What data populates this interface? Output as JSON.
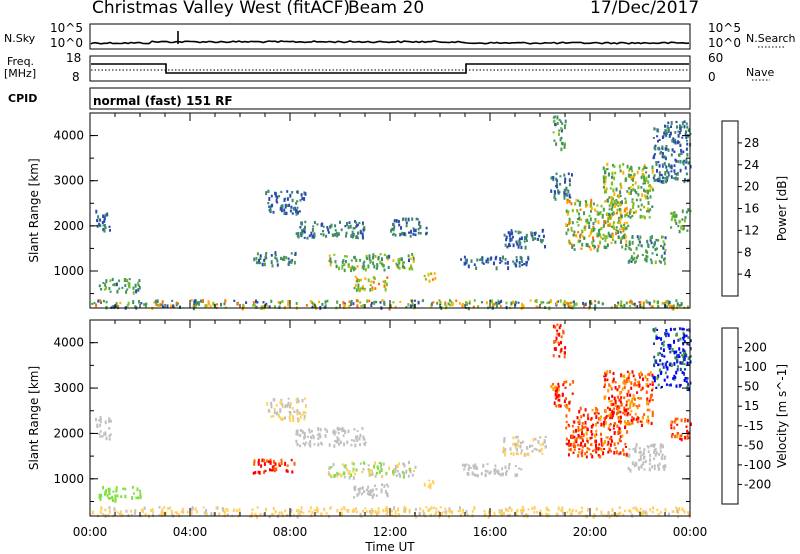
{
  "header": {
    "title": "Christmas Valley West (fitACF)",
    "beam": "Beam 20",
    "date": "17/Dec/2017"
  },
  "small_panels": {
    "nsky_label": "N.Sky",
    "nsky_ticks": [
      "10^5",
      "10^0"
    ],
    "nsearch_label": "N.Search",
    "nsearch_ticks": [
      "10^5",
      "10^0"
    ],
    "freq_label": "Freq.",
    "freq_unit": "[MHz]",
    "freq_ticks": [
      "18",
      "8"
    ],
    "nave_label": "Nave",
    "nave_ticks": [
      "60",
      "0"
    ],
    "cpid_label": "CPID",
    "cpid_value": "normal (fast) 151 RF"
  },
  "chart_data": [
    {
      "type": "heatmap",
      "panel": "power",
      "ylabel": "Slant Range [km]",
      "ylim": [
        180,
        4500
      ],
      "yticks": [
        "4000",
        "3000",
        "2000",
        "1000"
      ],
      "xlabel": "Time UT",
      "xlim_hours": [
        0,
        24
      ],
      "xticks": [
        "00:00",
        "04:00",
        "08:00",
        "12:00",
        "16:00",
        "20:00",
        "00:00"
      ],
      "colorbar_label": "Power [dB]",
      "colorbar_ticks": [
        "28",
        "24",
        "20",
        "16",
        "12",
        "8",
        "4"
      ],
      "colorbar_range": [
        0,
        30
      ],
      "echo_regions": [
        {
          "t": [
            0.0,
            24.0
          ],
          "r": [
            200,
            380
          ],
          "v": [
            4,
            22
          ]
        },
        {
          "t": [
            0.3,
            2.0
          ],
          "r": [
            550,
            850
          ],
          "v": [
            6,
            16
          ]
        },
        {
          "t": [
            0.2,
            0.8
          ],
          "r": [
            1900,
            2400
          ],
          "v": [
            4,
            8
          ]
        },
        {
          "t": [
            6.5,
            8.2
          ],
          "r": [
            1150,
            1450
          ],
          "v": [
            6,
            12
          ]
        },
        {
          "t": [
            7.0,
            8.6
          ],
          "r": [
            2300,
            2800
          ],
          "v": [
            4,
            8
          ]
        },
        {
          "t": [
            8.2,
            11.0
          ],
          "r": [
            1750,
            2150
          ],
          "v": [
            4,
            10
          ]
        },
        {
          "t": [
            9.5,
            13.0
          ],
          "r": [
            1050,
            1400
          ],
          "v": [
            6,
            18
          ]
        },
        {
          "t": [
            10.5,
            12.0
          ],
          "r": [
            600,
            900
          ],
          "v": [
            12,
            22
          ]
        },
        {
          "t": [
            12.0,
            13.5
          ],
          "r": [
            1800,
            2200
          ],
          "v": [
            4,
            10
          ]
        },
        {
          "t": [
            13.3,
            13.8
          ],
          "r": [
            800,
            1000
          ],
          "v": [
            14,
            24
          ]
        },
        {
          "t": [
            14.8,
            17.5
          ],
          "r": [
            1100,
            1350
          ],
          "v": [
            4,
            8
          ]
        },
        {
          "t": [
            16.5,
            18.2
          ],
          "r": [
            1550,
            1950
          ],
          "v": [
            4,
            10
          ]
        },
        {
          "t": [
            18.5,
            19.0
          ],
          "r": [
            3700,
            4450
          ],
          "v": [
            6,
            14
          ]
        },
        {
          "t": [
            18.4,
            19.3
          ],
          "r": [
            2600,
            3200
          ],
          "v": [
            4,
            10
          ]
        },
        {
          "t": [
            19.0,
            21.5
          ],
          "r": [
            1500,
            2600
          ],
          "v": [
            8,
            22
          ]
        },
        {
          "t": [
            20.5,
            22.5
          ],
          "r": [
            2200,
            3400
          ],
          "v": [
            8,
            20
          ]
        },
        {
          "t": [
            21.5,
            23.0
          ],
          "r": [
            1200,
            1800
          ],
          "v": [
            6,
            14
          ]
        },
        {
          "t": [
            22.5,
            24.0
          ],
          "r": [
            3000,
            4350
          ],
          "v": [
            4,
            10
          ]
        },
        {
          "t": [
            23.2,
            24.0
          ],
          "r": [
            1900,
            2400
          ],
          "v": [
            8,
            16
          ]
        }
      ]
    },
    {
      "type": "heatmap",
      "panel": "velocity",
      "ylabel": "Slant Range [km]",
      "ylim": [
        180,
        4500
      ],
      "yticks": [
        "4000",
        "3000",
        "2000",
        "1000"
      ],
      "xlabel": "Time UT",
      "xlim_hours": [
        0,
        24
      ],
      "xticks": [
        "00:00",
        "04:00",
        "08:00",
        "12:00",
        "16:00",
        "20:00",
        "00:00"
      ],
      "colorbar_label": "Velocity [m s^-1]",
      "colorbar_ticks": [
        "200",
        "100",
        "50",
        "15",
        "-15",
        "-50",
        "-100",
        "-200"
      ],
      "colorbar_range": [
        -250,
        250
      ],
      "echo_regions": [
        {
          "t": [
            0.0,
            24.0
          ],
          "r": [
            200,
            400
          ],
          "v": [
            -80,
            -20
          ]
        },
        {
          "t": [
            0.3,
            2.0
          ],
          "r": [
            550,
            850
          ],
          "v": [
            30,
            80
          ]
        },
        {
          "t": [
            0.2,
            0.8
          ],
          "r": [
            1900,
            2400
          ],
          "v": [
            -15,
            15
          ]
        },
        {
          "t": [
            6.5,
            8.2
          ],
          "r": [
            1150,
            1450
          ],
          "v": [
            -250,
            -150
          ]
        },
        {
          "t": [
            7.0,
            8.6
          ],
          "r": [
            2300,
            2800
          ],
          "v": [
            -60,
            0
          ]
        },
        {
          "t": [
            8.2,
            11.0
          ],
          "r": [
            1750,
            2150
          ],
          "v": [
            -15,
            15
          ]
        },
        {
          "t": [
            9.5,
            13.0
          ],
          "r": [
            1050,
            1400
          ],
          "v": [
            -60,
            60
          ]
        },
        {
          "t": [
            10.5,
            12.0
          ],
          "r": [
            600,
            900
          ],
          "v": [
            -15,
            15
          ]
        },
        {
          "t": [
            13.3,
            13.8
          ],
          "r": [
            800,
            1000
          ],
          "v": [
            -80,
            -40
          ]
        },
        {
          "t": [
            14.8,
            17.5
          ],
          "r": [
            1100,
            1350
          ],
          "v": [
            -15,
            15
          ]
        },
        {
          "t": [
            16.5,
            18.2
          ],
          "r": [
            1550,
            1950
          ],
          "v": [
            -60,
            10
          ]
        },
        {
          "t": [
            18.5,
            19.0
          ],
          "r": [
            3700,
            4450
          ],
          "v": [
            -250,
            -150
          ]
        },
        {
          "t": [
            18.4,
            19.3
          ],
          "r": [
            2600,
            3200
          ],
          "v": [
            -250,
            -120
          ]
        },
        {
          "t": [
            19.0,
            21.5
          ],
          "r": [
            1500,
            2600
          ],
          "v": [
            -250,
            -120
          ]
        },
        {
          "t": [
            20.5,
            22.5
          ],
          "r": [
            2200,
            3400
          ],
          "v": [
            -250,
            -100
          ]
        },
        {
          "t": [
            21.5,
            23.0
          ],
          "r": [
            1200,
            1800
          ],
          "v": [
            -15,
            15
          ]
        },
        {
          "t": [
            22.5,
            24.0
          ],
          "r": [
            3000,
            4350
          ],
          "v": [
            100,
            250
          ]
        },
        {
          "t": [
            23.2,
            24.0
          ],
          "r": [
            1900,
            2400
          ],
          "v": [
            -250,
            -120
          ]
        }
      ]
    }
  ],
  "colors": {
    "power_scale": [
      "#0000ff",
      "#2a4ab0",
      "#3d8a68",
      "#48a048",
      "#80c020",
      "#ffb000",
      "#ff7000",
      "#e02000",
      "#ff0000"
    ],
    "velocity_scale": [
      "#ff0000",
      "#ff6000",
      "#ffa000",
      "#ffd060",
      "#c0c0c0",
      "#80e040",
      "#40a040",
      "#2040a0",
      "#0000ff"
    ]
  }
}
